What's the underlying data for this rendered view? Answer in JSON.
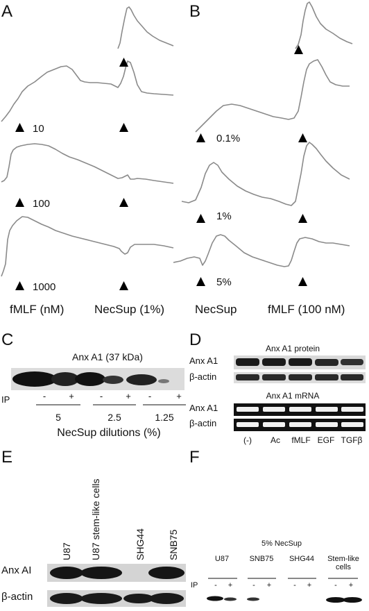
{
  "panels": {
    "a": "A",
    "b": "B",
    "c": "C",
    "d": "D",
    "e": "E",
    "f": "F"
  },
  "panel_a": {
    "doses": [
      "10",
      "100",
      "1000"
    ],
    "xlabel_left": "fMLF (nM)",
    "xlabel_right": "NecSup (1%)"
  },
  "panel_b": {
    "doses": [
      "0.1%",
      "1%",
      "5%"
    ],
    "xlabel_left": "NecSup",
    "xlabel_right": "fMLF (100 nM)"
  },
  "panel_c": {
    "title": "Anx A1 (37 kDa)",
    "ip_label": "IP",
    "signs": [
      "-",
      "+",
      "-",
      "+",
      "-",
      "+"
    ],
    "dilutions": [
      "5",
      "2.5",
      "1.25"
    ],
    "xlabel": "NecSup dilutions (%)"
  },
  "panel_d": {
    "protein_title": "Anx A1 protein",
    "mrna_title": "Anx A1 mRNA",
    "row_labels": [
      "Anx A1",
      "β-actin",
      "Anx A1",
      "β-actin"
    ],
    "lanes": [
      "(-)",
      "Ac",
      "fMLF",
      "EGF",
      "TGFβ"
    ]
  },
  "panel_e": {
    "lanes": [
      "U87",
      "U87 stem-like cells",
      "SHG44",
      "SNB75"
    ],
    "row_labels": [
      "Anx AI",
      "β-actin"
    ]
  },
  "panel_f": {
    "title": "5% NecSup",
    "groups": [
      "U87",
      "SNB75",
      "SHG44",
      "Stem-like",
      "cells"
    ],
    "ip_label": "IP",
    "signs": [
      "-",
      "+",
      "-",
      "+",
      "-",
      "+",
      "-",
      "+"
    ]
  }
}
